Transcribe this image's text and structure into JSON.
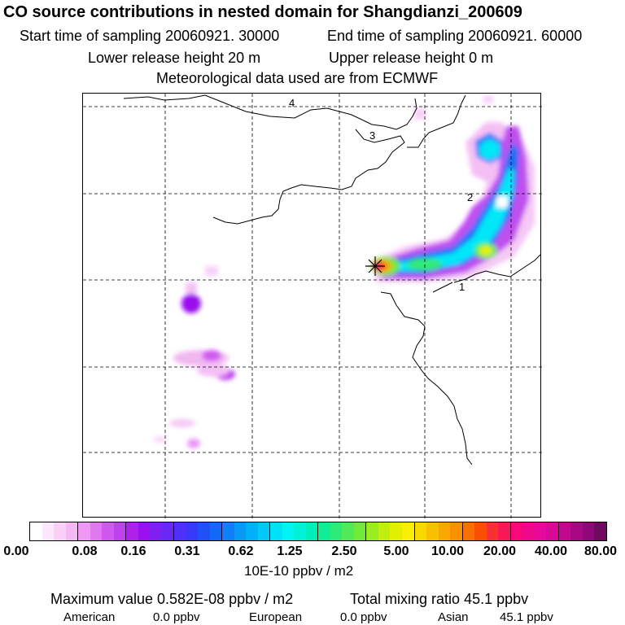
{
  "header": {
    "title": "CO  source contributions in nested domain for Shangdianzi_200609",
    "start_label": "Start time of sampling 20060921. 30000",
    "end_label": "End time of sampling 20060921. 60000",
    "lower_label": "Lower release height   20 m",
    "upper_label": "Upper release height    0 m",
    "met_label": "Meteorological data used are from ECMWF"
  },
  "map": {
    "grid_numbers": [
      "4",
      "3",
      "2",
      "1"
    ]
  },
  "colorbar": {
    "ticks": [
      "0.00",
      "0.08",
      "0.16",
      "0.31",
      "0.62",
      "1.25",
      "2.50",
      "5.00",
      "10.00",
      "20.00",
      "40.00",
      "80.00"
    ],
    "units": "10E-10 ppbv / m2",
    "colors": [
      "#ffffff",
      "#fce8fc",
      "#f8d0f8",
      "#f4b8f4",
      "#ee98f4",
      "#e078f0",
      "#d058f0",
      "#c040ee",
      "#b020ec",
      "#9a10ee",
      "#8020f0",
      "#6a28f4",
      "#5030f8",
      "#3838f8",
      "#2050f8",
      "#1468f8",
      "#1080f8",
      "#0898f8",
      "#00b0f8",
      "#00c8f8",
      "#00e0f8",
      "#00f4f4",
      "#00f0d8",
      "#00eeb8",
      "#10ec98",
      "#30ea78",
      "#50ea58",
      "#70ea38",
      "#98ec20",
      "#c0ee10",
      "#e0f000",
      "#f8f000",
      "#f8d800",
      "#f8c000",
      "#f8a800",
      "#f89000",
      "#f87000",
      "#f85000",
      "#f83030",
      "#f81858",
      "#f80878",
      "#f0088c",
      "#e8089c",
      "#d80898",
      "#c00890",
      "#a80884",
      "#900878",
      "#700860"
    ]
  },
  "summary": {
    "max_label": "Maximum value  0.582E-08 ppbv / m2",
    "total_label": "Total mixing ratio      45.1 ppbv",
    "american_label": "American",
    "american_value": "0.0 ppbv",
    "european_label": "European",
    "european_value": "0.0 ppbv",
    "asian_label": "Asian",
    "asian_value": "45.1 ppbv"
  }
}
